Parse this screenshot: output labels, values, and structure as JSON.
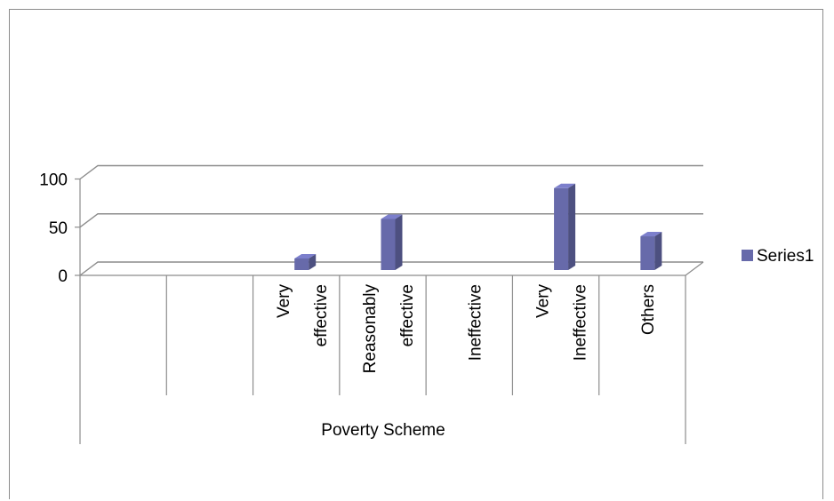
{
  "chart_data": {
    "type": "bar",
    "categories": [
      "",
      "",
      [
        "Very",
        "effective"
      ],
      [
        "Reasonably",
        "effective"
      ],
      [
        "Ineffective"
      ],
      [
        "Very",
        "Ineffective"
      ],
      [
        "Others"
      ]
    ],
    "values": [
      null,
      null,
      12,
      53,
      null,
      85,
      35
    ],
    "series": [
      {
        "name": "Series1",
        "color": "#676aaa"
      }
    ],
    "xlabel": "Poverty Scheme",
    "ylabel": "",
    "yticks": [
      "0",
      "50",
      "100"
    ],
    "ylim": [
      0,
      100
    ],
    "grid": true,
    "legend": "right"
  }
}
